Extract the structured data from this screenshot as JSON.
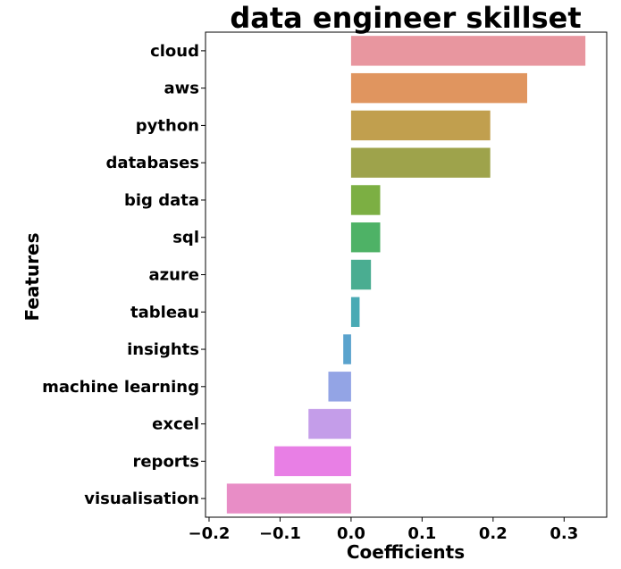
{
  "chart_data": {
    "type": "bar",
    "orientation": "horizontal",
    "title": "data engineer skillset",
    "xlabel": "Coefficients",
    "ylabel": "Features",
    "xlim": [
      -0.205,
      0.36
    ],
    "xticks": [
      -0.2,
      -0.1,
      0.0,
      0.1,
      0.2,
      0.3
    ],
    "xtick_labels": [
      "−0.2",
      "−0.1",
      "0.0",
      "0.1",
      "0.2",
      "0.3"
    ],
    "grid": false,
    "categories": [
      "cloud",
      "aws",
      "python",
      "databases",
      "big data",
      "sql",
      "azure",
      "tableau",
      "insights",
      "machine learning",
      "excel",
      "reports",
      "visualisation"
    ],
    "values": [
      0.33,
      0.248,
      0.196,
      0.196,
      0.041,
      0.041,
      0.028,
      0.012,
      -0.011,
      -0.032,
      -0.06,
      -0.108,
      -0.175
    ],
    "colors": [
      "#e8969f",
      "#e0955f",
      "#c19f4e",
      "#9ea34b",
      "#7caf43",
      "#4eb266",
      "#4aad91",
      "#4aaab4",
      "#5aa3cd",
      "#93a4e5",
      "#c49de9",
      "#e87fe5",
      "#e88dc6"
    ]
  }
}
